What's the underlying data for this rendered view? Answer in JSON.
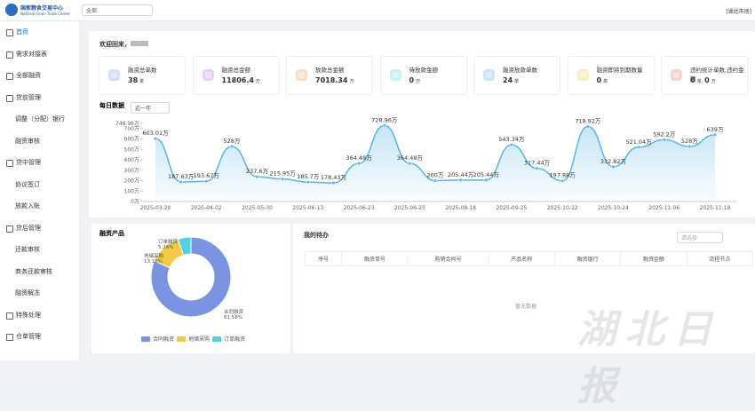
{
  "header": {
    "logo_title": "国家粮食交易中心",
    "logo_subtitle": "National Grain Trade Center",
    "scope_select": "全部",
    "market": "[湖北市场]"
  },
  "sidebar": [
    "首页",
    "需求对接表",
    "全部融资",
    "贷前管理",
    "调整（分配）银行",
    "融资审核",
    "贷中管理",
    "协议签订",
    "放款入账",
    "贷后管理",
    "还款审核",
    "商务还款审核",
    "融资解冻",
    "特殊处理",
    "仓单管理"
  ],
  "welcome": "欢迎回来，",
  "stats": [
    {
      "label": "融资总单数",
      "figures": [
        {
          "value": 38,
          "unit": "单"
        }
      ]
    },
    {
      "label": "融资总金额",
      "figures": [
        {
          "value": 11806.4,
          "unit": "万"
        }
      ]
    },
    {
      "label": "放款总金额",
      "figures": [
        {
          "value": 7018.34,
          "unit": "万"
        }
      ]
    },
    {
      "label": "待放款金额",
      "figures": [
        {
          "value": 0,
          "unit": "万"
        }
      ]
    },
    {
      "label": "融资放款单数",
      "figures": [
        {
          "value": 24,
          "unit": "单"
        }
      ]
    },
    {
      "label": "融资即将到期数量",
      "figures": [
        {
          "value": 0,
          "unit": "单"
        }
      ]
    },
    {
      "label": "违约统计单数,违约金额",
      "figures": [
        {
          "value": 0,
          "unit": "单,"
        },
        {
          "value": 0,
          "unit": "万"
        }
      ]
    }
  ],
  "chart_data": [
    {
      "type": "line",
      "title": "每日数据",
      "range_select": "近一年",
      "categories": [
        "2025-03-20",
        null,
        "2025-04-02",
        null,
        "2025-05-30",
        null,
        "2025-06-13",
        null,
        "2025-06-23",
        null,
        "2025-06-25",
        null,
        "2025-08-18",
        null,
        "2025-09-25",
        null,
        "2025-10-22",
        null,
        "2025-10-24",
        null,
        "2025-11-06",
        null,
        "2025-11-18"
      ],
      "values": [
        603.01,
        187.63,
        193.67,
        528,
        237.6,
        215.95,
        185.7,
        178.43,
        364.48,
        728.96,
        364.48,
        200,
        205.44,
        205.44,
        543.34,
        317.44,
        197.88,
        718.92,
        332.82,
        521.04,
        592.2,
        528,
        639
      ],
      "value_labels": [
        "603.01万",
        "187.63万",
        "193.67万",
        "528万",
        "237.6万",
        "215.95万",
        "185.7万",
        "178.43万",
        "364.48万",
        "728.96万",
        "364.48万",
        "200万",
        "205.44万",
        "205.44万",
        "543.34万",
        "317.44万",
        "197.88万",
        "718.92万",
        "332.82万",
        "521.04万",
        "592.2万",
        "528万",
        "639万"
      ],
      "color": "#5ab4e5",
      "area": true,
      "ylim": [
        0,
        748.96
      ],
      "yticks": [
        {
          "value": 0,
          "label": "0万"
        },
        {
          "value": 100,
          "label": "100万"
        },
        {
          "value": 200,
          "label": "200万"
        },
        {
          "value": 300,
          "label": "300万"
        },
        {
          "value": 400,
          "label": "400万"
        },
        {
          "value": 500,
          "label": "500万"
        },
        {
          "value": 600,
          "label": "600万"
        },
        {
          "value": 700,
          "label": "700万"
        },
        {
          "value": 748.96,
          "label": "748.96万"
        }
      ]
    },
    {
      "type": "donut",
      "title": "融资产品",
      "categories": [
        "合同融资",
        "地储采购",
        "订单融资"
      ],
      "values": [
        81.58,
        13.16,
        5.26
      ],
      "value_labels": [
        "81.58%",
        "13.16%",
        "5.26%"
      ],
      "colors": [
        "#7b93e0",
        "#f3c945",
        "#4fd3e3"
      ]
    }
  ],
  "todo": {
    "title": "我的待办",
    "select": "请选择",
    "columns": [
      "序号",
      "融资单号",
      "购销合同号",
      "产品名称",
      "融资银行",
      "融资金额",
      "流程节点"
    ],
    "empty": "暂无数据"
  },
  "watermark": "湖北日报"
}
